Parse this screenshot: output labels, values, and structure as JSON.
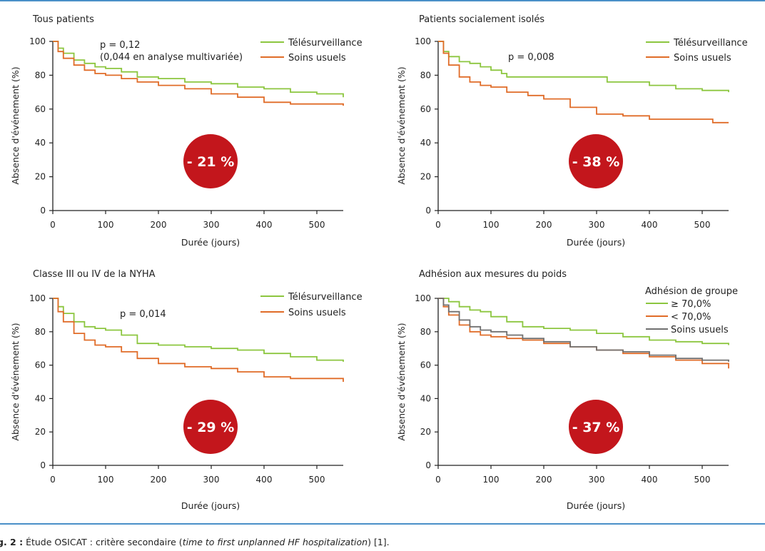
{
  "colors": {
    "telesurveillance": "#8cc63f",
    "soins_usuels": "#e06c28",
    "gris": "#707070",
    "badge": "#c3161c",
    "rule": "#4a90c8"
  },
  "caption": {
    "label": "g. 2 :",
    "text_start": " Étude OSICAT : critère secondaire (",
    "italic": "time to first unplanned HF hospitalization",
    "text_end": ") [1]."
  },
  "chart_data": [
    {
      "type": "line",
      "title": "Tous patients",
      "xlabel": "Durée (jours)",
      "ylabel": "Absence d'événement (%)",
      "xlim": [
        0,
        550
      ],
      "ylim": [
        0,
        100
      ],
      "xticks": [
        0,
        100,
        200,
        300,
        400,
        500
      ],
      "yticks": [
        0,
        20,
        40,
        60,
        80,
        100
      ],
      "legend_position": "top-right",
      "annotations": [
        "p = 0,12",
        "(0,044 en analyse multivariée)"
      ],
      "badge": "- 21 %",
      "series": [
        {
          "name": "Télésurveillance",
          "color_key": "telesurveillance",
          "x": [
            0,
            10,
            20,
            40,
            60,
            80,
            100,
            130,
            160,
            200,
            250,
            300,
            350,
            400,
            450,
            500,
            550
          ],
          "y": [
            100,
            96,
            93,
            89,
            87,
            85,
            84,
            82,
            79,
            78,
            76,
            75,
            73,
            72,
            70,
            69,
            67
          ]
        },
        {
          "name": "Soins usuels",
          "color_key": "soins_usuels",
          "x": [
            0,
            10,
            20,
            40,
            60,
            80,
            100,
            130,
            160,
            200,
            250,
            300,
            350,
            400,
            450,
            500,
            550
          ],
          "y": [
            100,
            94,
            90,
            86,
            83,
            81,
            80,
            78,
            76,
            74,
            72,
            69,
            67,
            64,
            63,
            63,
            62
          ]
        }
      ]
    },
    {
      "type": "line",
      "title": "Patients socialement isolés",
      "xlabel": "Durée (jours)",
      "ylabel": "Absence d'événement (%)",
      "xlim": [
        0,
        550
      ],
      "ylim": [
        0,
        100
      ],
      "xticks": [
        0,
        100,
        200,
        300,
        400,
        500
      ],
      "yticks": [
        0,
        20,
        40,
        60,
        80,
        100
      ],
      "legend_position": "top-right",
      "annotations": [
        "p = 0,008"
      ],
      "badge": "- 38 %",
      "series": [
        {
          "name": "Télésurveillance",
          "color_key": "telesurveillance",
          "x": [
            0,
            10,
            20,
            40,
            60,
            80,
            100,
            120,
            130,
            200,
            250,
            300,
            320,
            350,
            400,
            450,
            500,
            550
          ],
          "y": [
            100,
            94,
            91,
            88,
            87,
            85,
            83,
            81,
            79,
            79,
            79,
            79,
            76,
            76,
            74,
            72,
            71,
            70
          ]
        },
        {
          "name": "Soins usuels",
          "color_key": "soins_usuels",
          "x": [
            0,
            10,
            20,
            40,
            60,
            80,
            100,
            130,
            170,
            200,
            250,
            300,
            350,
            400,
            450,
            500,
            520,
            550
          ],
          "y": [
            100,
            93,
            86,
            79,
            76,
            74,
            73,
            70,
            68,
            66,
            61,
            57,
            56,
            54,
            54,
            54,
            52,
            52
          ]
        }
      ]
    },
    {
      "type": "line",
      "title": "Classe III ou IV de la NYHA",
      "xlabel": "Durée (jours)",
      "ylabel": "Absence d'événement (%)",
      "xlim": [
        0,
        550
      ],
      "ylim": [
        0,
        100
      ],
      "xticks": [
        0,
        100,
        200,
        300,
        400,
        500
      ],
      "yticks": [
        0,
        20,
        40,
        60,
        80,
        100
      ],
      "legend_position": "top-right",
      "annotations": [
        "p = 0,014"
      ],
      "badge": "- 29 %",
      "series": [
        {
          "name": "Télésurveillance",
          "color_key": "telesurveillance",
          "x": [
            0,
            10,
            20,
            40,
            60,
            80,
            100,
            130,
            160,
            200,
            250,
            300,
            350,
            400,
            450,
            500,
            550
          ],
          "y": [
            100,
            95,
            91,
            86,
            83,
            82,
            81,
            78,
            73,
            72,
            71,
            70,
            69,
            67,
            65,
            63,
            62
          ]
        },
        {
          "name": "Soins usuels",
          "color_key": "soins_usuels",
          "x": [
            0,
            10,
            20,
            40,
            60,
            80,
            100,
            130,
            160,
            200,
            250,
            300,
            350,
            400,
            450,
            500,
            550
          ],
          "y": [
            100,
            92,
            86,
            79,
            75,
            72,
            71,
            68,
            64,
            61,
            59,
            58,
            56,
            53,
            52,
            52,
            50
          ]
        }
      ]
    },
    {
      "type": "line",
      "title": "Adhésion aux mesures du poids",
      "xlabel": "Durée (jours)",
      "ylabel": "Absence d'événement (%)",
      "xlim": [
        0,
        550
      ],
      "ylim": [
        0,
        100
      ],
      "xticks": [
        0,
        100,
        200,
        300,
        400,
        500
      ],
      "yticks": [
        0,
        20,
        40,
        60,
        80,
        100
      ],
      "legend_position": "top-right",
      "legend_title": "Adhésion de groupe",
      "annotations": [],
      "badge": "- 37 %",
      "series": [
        {
          "name": "≥ 70,0%",
          "color_key": "telesurveillance",
          "x": [
            0,
            20,
            40,
            60,
            80,
            100,
            130,
            160,
            200,
            250,
            300,
            350,
            400,
            450,
            500,
            550
          ],
          "y": [
            100,
            98,
            95,
            93,
            92,
            89,
            86,
            83,
            82,
            81,
            79,
            77,
            75,
            74,
            73,
            72
          ]
        },
        {
          "name": "< 70,0%",
          "color_key": "soins_usuels",
          "x": [
            0,
            10,
            20,
            40,
            60,
            80,
            100,
            130,
            160,
            200,
            250,
            300,
            350,
            400,
            450,
            500,
            550
          ],
          "y": [
            100,
            95,
            90,
            84,
            80,
            78,
            77,
            76,
            75,
            73,
            71,
            69,
            67,
            65,
            63,
            61,
            58
          ]
        },
        {
          "name": "Soins usuels",
          "color_key": "gris",
          "x": [
            0,
            10,
            20,
            40,
            60,
            80,
            100,
            130,
            160,
            200,
            250,
            300,
            350,
            400,
            450,
            500,
            550
          ],
          "y": [
            100,
            96,
            92,
            87,
            83,
            81,
            80,
            78,
            76,
            74,
            71,
            69,
            68,
            66,
            64,
            63,
            62
          ]
        }
      ]
    }
  ]
}
